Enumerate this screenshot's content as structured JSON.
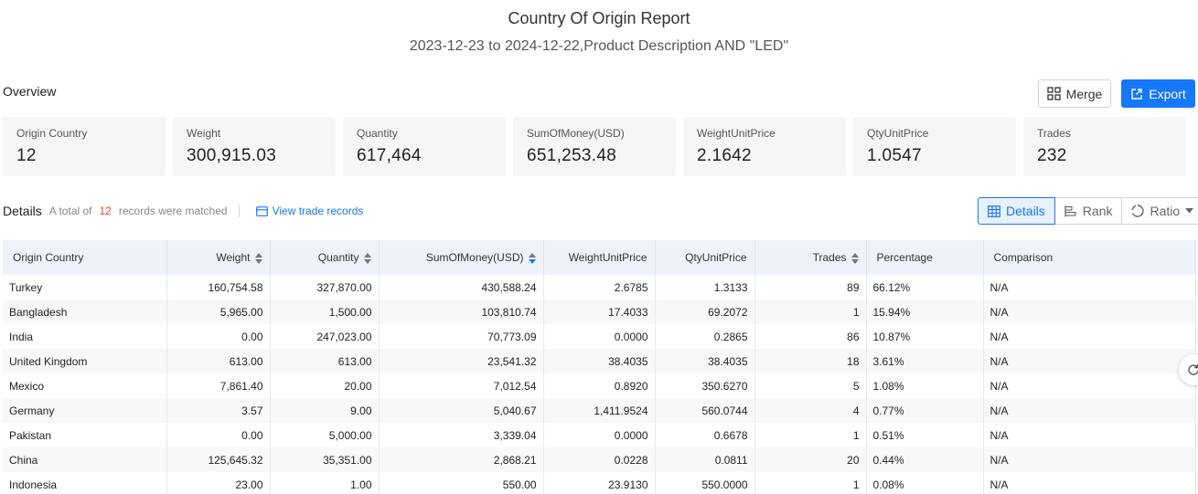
{
  "header": {
    "title": "Country Of Origin Report",
    "subtitle": "2023-12-23 to 2024-12-22,Product Description AND \"LED\""
  },
  "overview": {
    "label": "Overview",
    "merge_label": "Merge",
    "export_label": "Export",
    "stats": [
      {
        "label": "Origin Country",
        "value": "12"
      },
      {
        "label": "Weight",
        "value": "300,915.03"
      },
      {
        "label": "Quantity",
        "value": "617,464"
      },
      {
        "label": "SumOfMoney(USD)",
        "value": "651,253.48"
      },
      {
        "label": "WeightUnitPrice",
        "value": "2.1642"
      },
      {
        "label": "QtyUnitPrice",
        "value": "1.0547"
      },
      {
        "label": "Trades",
        "value": "232"
      }
    ]
  },
  "details": {
    "title": "Details",
    "note_prefix": "A total of",
    "count": "12",
    "note_suffix": "records were matched",
    "view_link": "View trade records",
    "views": [
      "Details",
      "Rank",
      "Ratio"
    ]
  },
  "colors": {
    "accent": "#1677ff",
    "count": "#e0443b",
    "header_bg": "#eef2fb"
  },
  "table": {
    "columns": [
      "Origin Country",
      "Weight",
      "Quantity",
      "SumOfMoney(USD)",
      "WeightUnitPrice",
      "QtyUnitPrice",
      "Trades",
      "Percentage",
      "Comparison"
    ],
    "rows": [
      [
        "Turkey",
        "160,754.58",
        "327,870.00",
        "430,588.24",
        "2.6785",
        "1.3133",
        "89",
        "66.12%",
        "N/A"
      ],
      [
        "Bangladesh",
        "5,965.00",
        "1,500.00",
        "103,810.74",
        "17.4033",
        "69.2072",
        "1",
        "15.94%",
        "N/A"
      ],
      [
        "India",
        "0.00",
        "247,023.00",
        "70,773.09",
        "0.0000",
        "0.2865",
        "86",
        "10.87%",
        "N/A"
      ],
      [
        "United Kingdom",
        "613.00",
        "613.00",
        "23,541.32",
        "38.4035",
        "38.4035",
        "18",
        "3.61%",
        "N/A"
      ],
      [
        "Mexico",
        "7,861.40",
        "20.00",
        "7,012.54",
        "0.8920",
        "350.6270",
        "5",
        "1.08%",
        "N/A"
      ],
      [
        "Germany",
        "3.57",
        "9.00",
        "5,040.67",
        "1,411.9524",
        "560.0744",
        "4",
        "0.77%",
        "N/A"
      ],
      [
        "Pakistan",
        "0.00",
        "5,000.00",
        "3,339.04",
        "0.0000",
        "0.6678",
        "1",
        "0.51%",
        "N/A"
      ],
      [
        "China",
        "125,645.32",
        "35,351.00",
        "2,868.21",
        "0.0228",
        "0.0811",
        "20",
        "0.44%",
        "N/A"
      ],
      [
        "Indonesia",
        "23.00",
        "1.00",
        "550.00",
        "23.9130",
        "550.0000",
        "1",
        "0.08%",
        "N/A"
      ]
    ]
  }
}
